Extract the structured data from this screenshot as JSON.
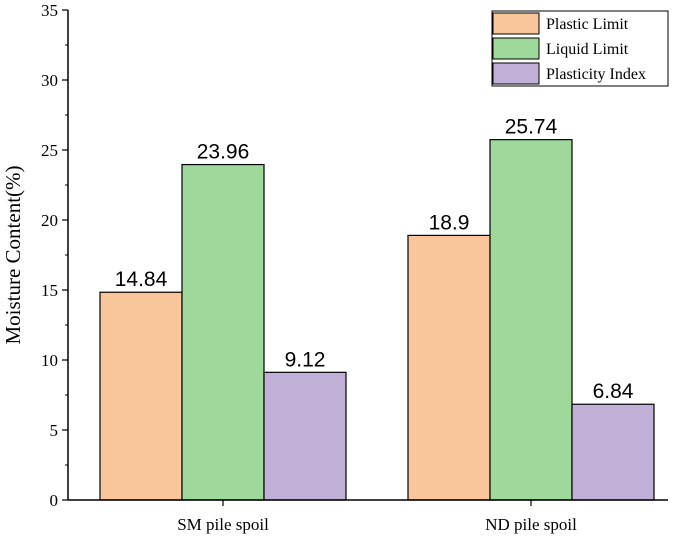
{
  "chart_data": {
    "type": "bar",
    "categories": [
      "SM pile spoil",
      "ND pile spoil"
    ],
    "series": [
      {
        "name": "Plastic Limit",
        "values": [
          14.84,
          18.9
        ],
        "color": "#F9C59B"
      },
      {
        "name": "Liquid Limit",
        "values": [
          23.96,
          25.74
        ],
        "color": "#9ED89A"
      },
      {
        "name": "Plasticity Index",
        "values": [
          9.12,
          6.84
        ],
        "color": "#C0B0D8"
      }
    ],
    "data_labels": [
      [
        "14.84",
        "23.96",
        "9.12"
      ],
      [
        "18.9",
        "25.74",
        "6.84"
      ]
    ],
    "title": "",
    "xlabel": "",
    "ylabel": "Moisture Content(%)",
    "ylim": [
      0,
      35
    ],
    "yticks": [
      0,
      5,
      10,
      15,
      20,
      25,
      30,
      35
    ],
    "grid": false,
    "legend_position": "top-right"
  }
}
